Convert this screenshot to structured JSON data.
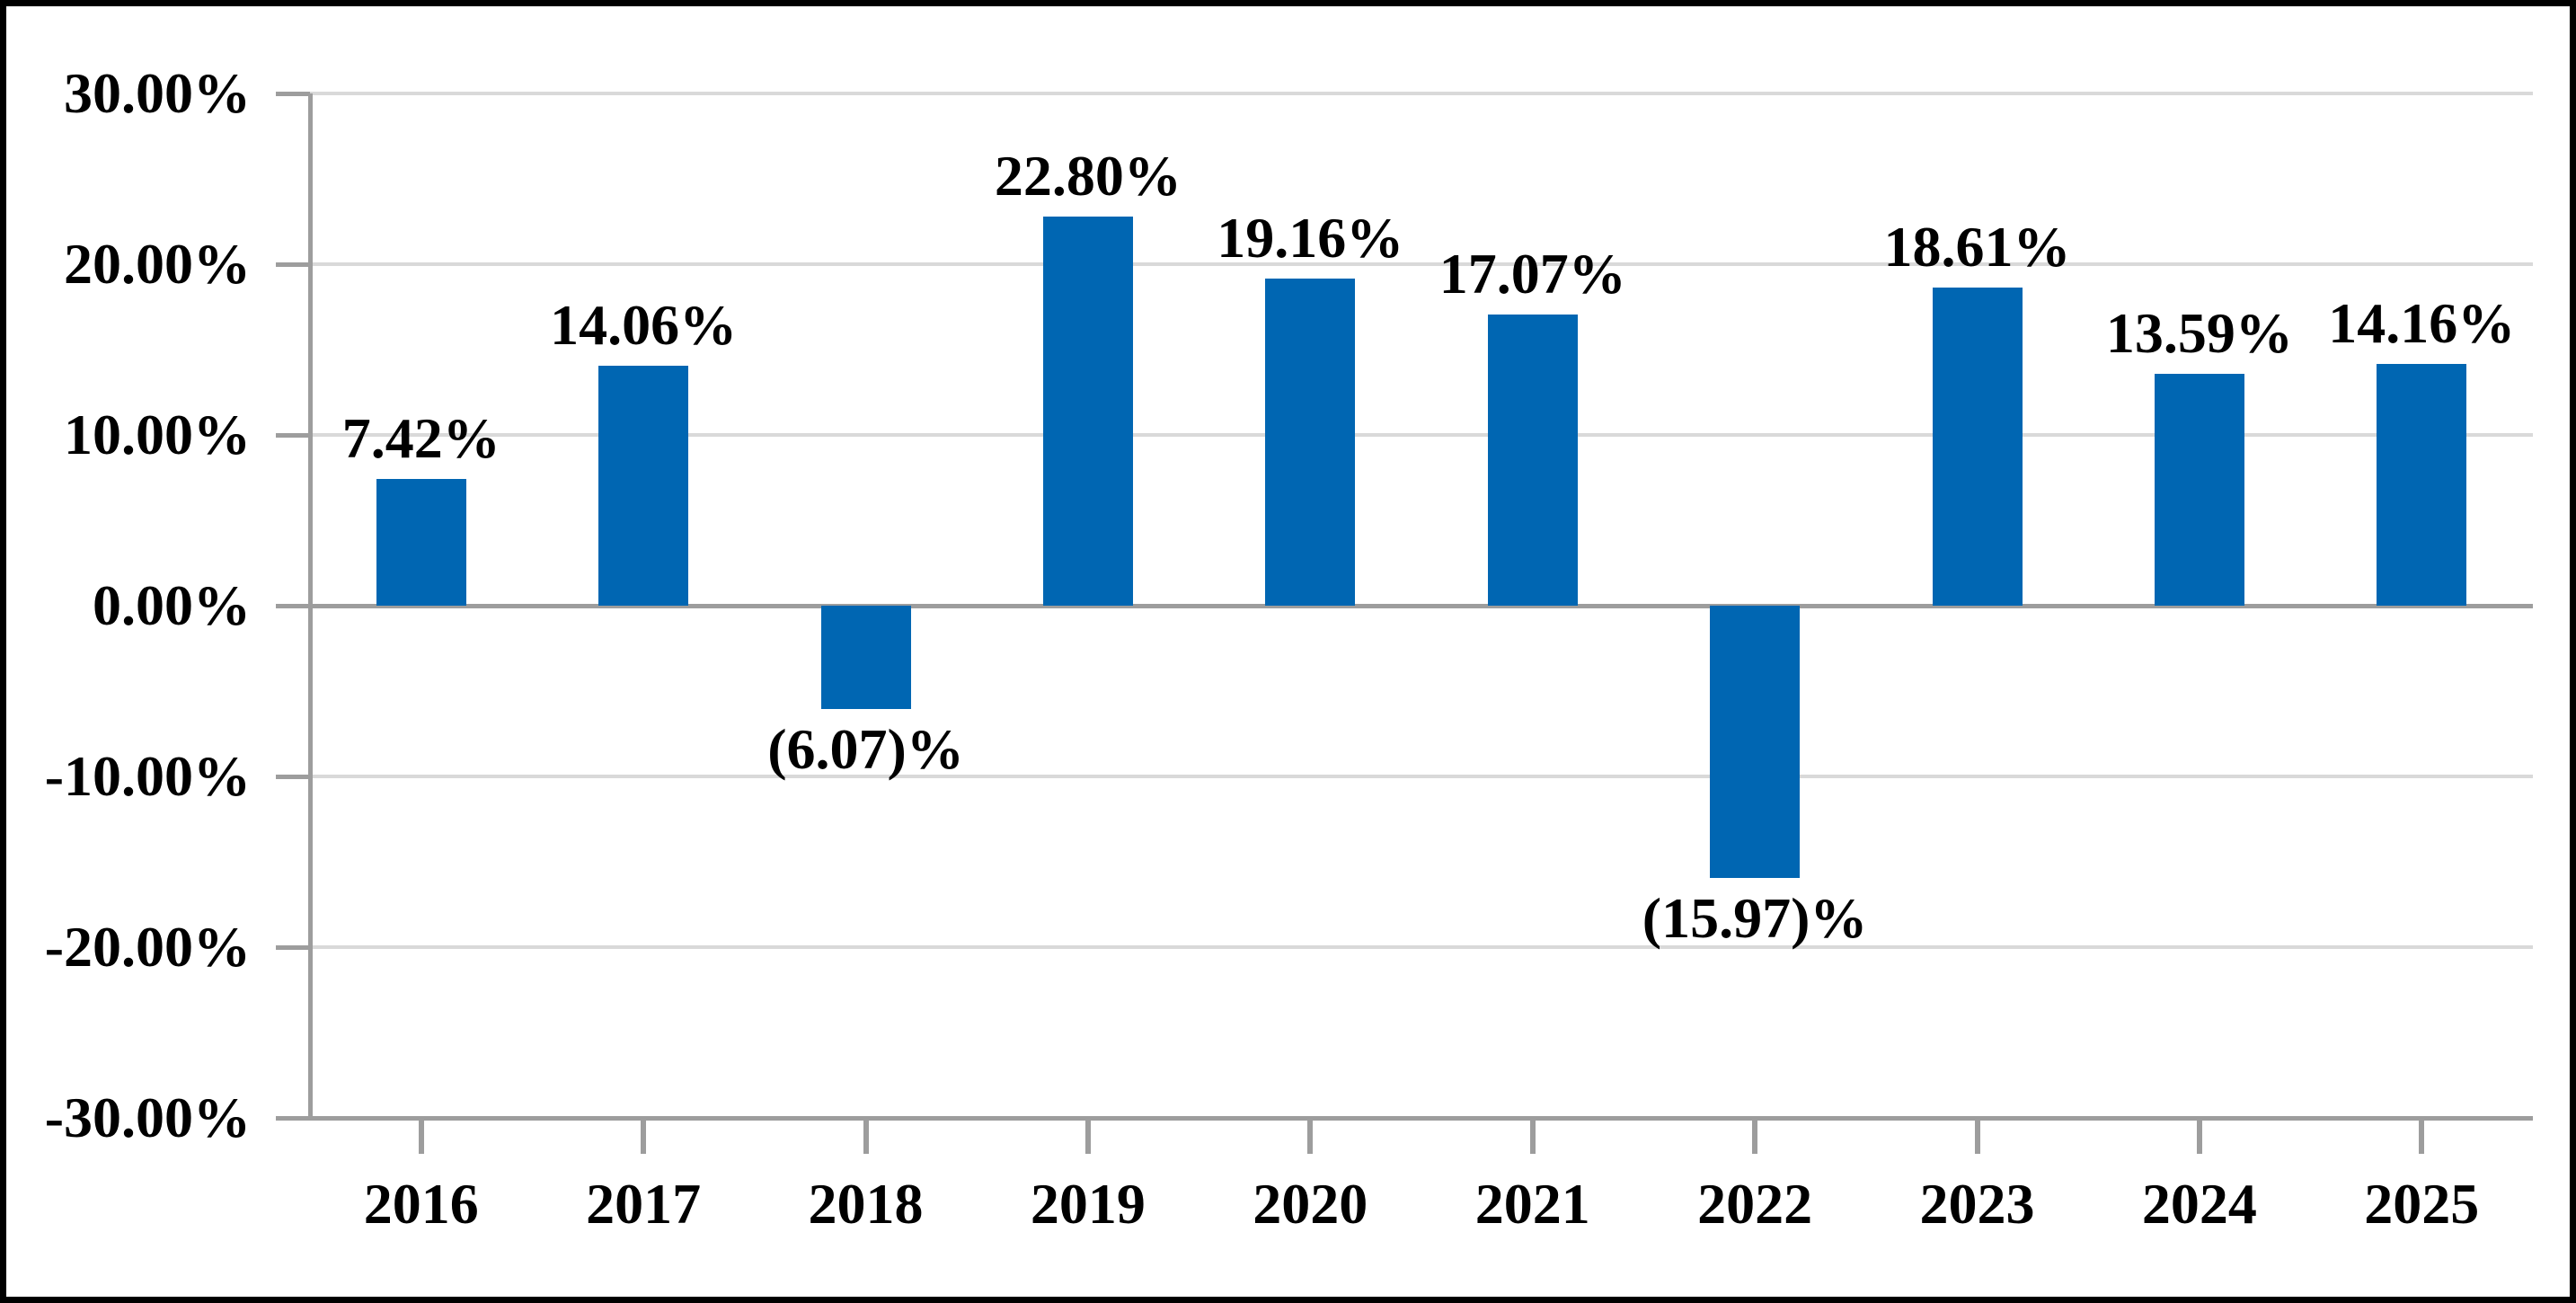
{
  "chart_data": {
    "type": "bar",
    "title": "",
    "xlabel": "",
    "ylabel": "",
    "categories": [
      "2016",
      "2017",
      "2018",
      "2019",
      "2020",
      "2021",
      "2022",
      "2023",
      "2024",
      "2025"
    ],
    "values": [
      7.42,
      14.06,
      -6.07,
      22.8,
      19.16,
      17.07,
      -15.97,
      18.61,
      13.59,
      14.16
    ],
    "data_labels": [
      "7.42%",
      "14.06%",
      "(6.07)%",
      "22.80%",
      "19.16%",
      "17.07%",
      "(15.97)%",
      "18.61%",
      "13.59%",
      "14.16%"
    ],
    "series_count": 1,
    "legend": "none",
    "grid": true,
    "y_axis": {
      "min": -30,
      "max": 30,
      "step": 10,
      "tick_values": [
        30,
        20,
        10,
        0,
        -10,
        -20,
        -30
      ],
      "tick_labels": [
        "30.00%",
        "20.00%",
        "10.00%",
        "0.00%",
        "-10.00%",
        "-20.00%",
        "-30.00%"
      ],
      "gridline_values": [
        30,
        20,
        10,
        -10,
        -20
      ]
    },
    "colors": {
      "bar": "#0066B2",
      "gridline": "#D9D9D9",
      "axis": "#9D9D9D",
      "text": "#000000",
      "border": "#000000",
      "background": "#FFFFFF"
    }
  }
}
